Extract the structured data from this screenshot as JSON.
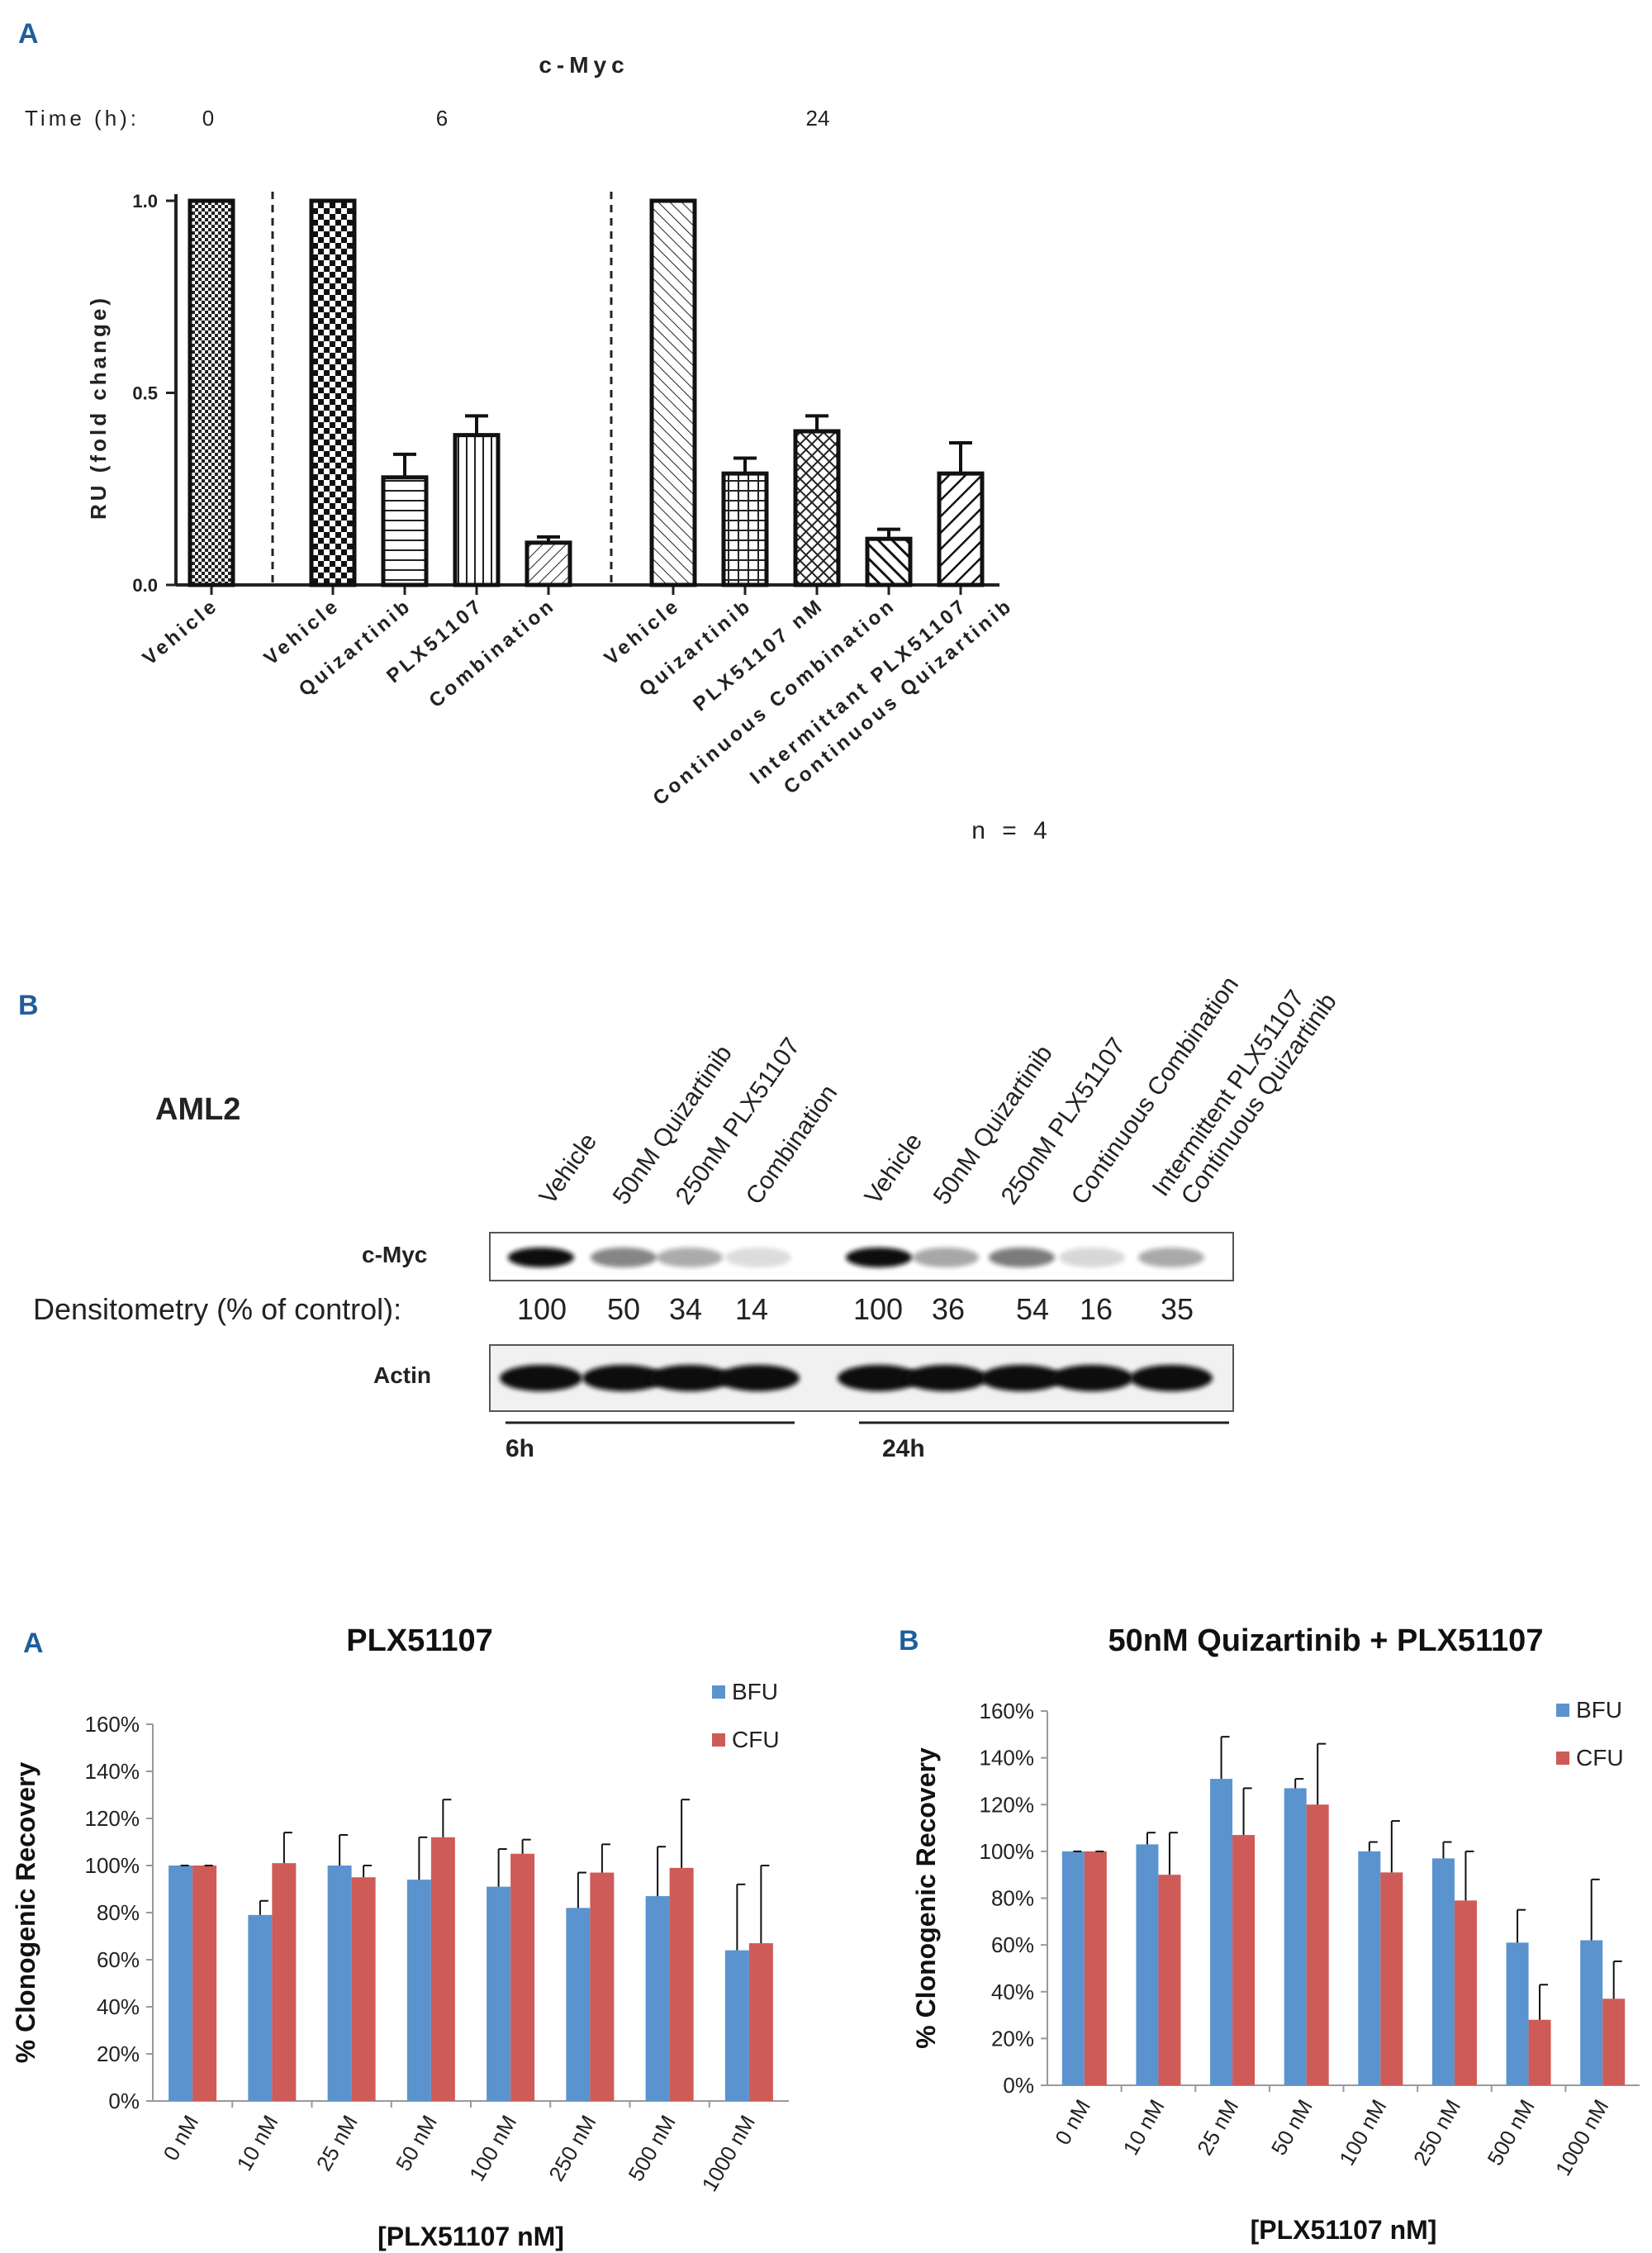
{
  "panelA": {
    "letter": "A",
    "title": "c-Myc",
    "time_label": "Time (h):",
    "times": [
      "0",
      "6",
      "24"
    ],
    "ylabel": "RU (fold change)",
    "yticks": [
      "0.0",
      "0.5",
      "1.0"
    ],
    "n_label": "n = 4"
  },
  "panelB": {
    "letter": "B",
    "cell_line": "AML2",
    "lanes": [
      "Vehicle",
      "50nM Quizartinib",
      "250nM PLX51107",
      "Combination",
      "Vehicle",
      "50nM Quizartinib",
      "250nM PLX51107",
      "Continuous Combination",
      "Intermittent PLX51107",
      "Continuous Quizartinib"
    ],
    "cmyc_label": "c-Myc",
    "densitometry_label": "Densitometry (% of control):",
    "densitometry": [
      "100",
      "50",
      "34",
      "14",
      "100",
      "36",
      "54",
      "16",
      "35"
    ],
    "actin_label": "Actin",
    "time_6h": "6h",
    "time_24h": "24h"
  },
  "colors": {
    "bfu": "#5B93CF",
    "cfu": "#CE5B57",
    "axis": "#222222",
    "panel_letter": "#1F5F99",
    "gray_axis": "#999999"
  },
  "chart_data": [
    {
      "type": "bar",
      "title": "c-Myc",
      "ylabel": "RU (fold change)",
      "ylim": [
        0,
        1.0
      ],
      "yticks": [
        0.0,
        0.5,
        1.0
      ],
      "groups": [
        {
          "time": "0",
          "categories": [
            "Vehicle"
          ],
          "values": [
            1.0
          ],
          "errors": [
            0
          ]
        },
        {
          "time": "6",
          "categories": [
            "Vehicle",
            "Quizartinib",
            "PLX51107",
            "Combination"
          ],
          "values": [
            1.0,
            0.28,
            0.39,
            0.11
          ],
          "errors": [
            0,
            0.06,
            0.05,
            0.015
          ]
        },
        {
          "time": "24",
          "categories": [
            "Vehicle",
            "Quizartinib",
            "PLX51107 nM",
            "Continuous Combination",
            "Intermittant PLX51107",
            "Continuous Quizartinib"
          ],
          "values": [
            1.0,
            0.29,
            0.4,
            0.12,
            0.29,
            null
          ],
          "errors": [
            0,
            0.04,
            0.04,
            0.025,
            0.08,
            null
          ]
        }
      ]
    },
    {
      "type": "bar",
      "letter": "A",
      "title": "PLX51107",
      "xlabel": "[PLX51107 nM]",
      "ylabel": "% Clonogenic Recovery",
      "ylim": [
        0,
        160
      ],
      "yticks": [
        "0%",
        "20%",
        "40%",
        "60%",
        "80%",
        "100%",
        "120%",
        "140%",
        "160%"
      ],
      "categories": [
        "0 nM",
        "10 nM",
        "25 nM",
        "50 nM",
        "100 nM",
        "250 nM",
        "500 nM",
        "1000 nM"
      ],
      "series": [
        {
          "name": "BFU",
          "values": [
            100,
            79,
            100,
            94,
            91,
            82,
            87,
            64
          ],
          "errors": [
            0,
            6,
            13,
            18,
            16,
            15,
            21,
            28
          ]
        },
        {
          "name": "CFU",
          "values": [
            100,
            101,
            95,
            112,
            105,
            97,
            99,
            67
          ],
          "errors": [
            0,
            13,
            5,
            16,
            6,
            12,
            29,
            33
          ]
        }
      ]
    },
    {
      "type": "bar",
      "letter": "B",
      "title": "50nM Quizartinib + PLX51107",
      "xlabel": "[PLX51107 nM]",
      "ylabel": "% Clonogenic Recovery",
      "ylim": [
        0,
        160
      ],
      "yticks": [
        "0%",
        "20%",
        "40%",
        "60%",
        "80%",
        "100%",
        "120%",
        "140%",
        "160%"
      ],
      "categories": [
        "0 nM",
        "10 nM",
        "25 nM",
        "50 nM",
        "100 nM",
        "250 nM",
        "500 nM",
        "1000 nM"
      ],
      "series": [
        {
          "name": "BFU",
          "values": [
            100,
            103,
            131,
            127,
            100,
            97,
            61,
            62
          ],
          "errors": [
            0,
            5,
            18,
            4,
            4,
            7,
            14,
            26
          ]
        },
        {
          "name": "CFU",
          "values": [
            100,
            90,
            107,
            120,
            91,
            79,
            28,
            37
          ],
          "errors": [
            0,
            18,
            20,
            26,
            22,
            21,
            15,
            16
          ]
        }
      ]
    }
  ]
}
